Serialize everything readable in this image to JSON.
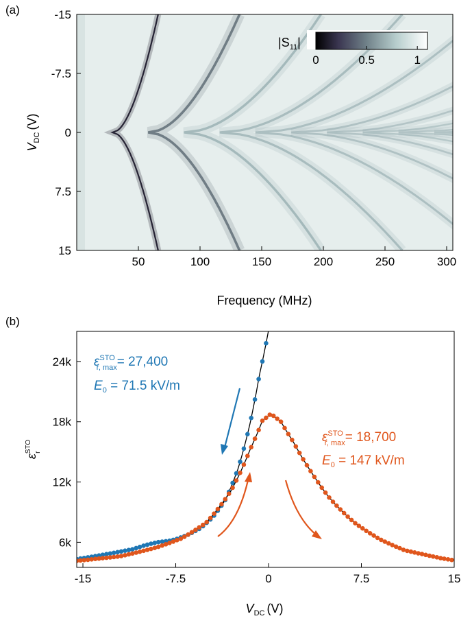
{
  "figure": {
    "panel_a_label": "(a)",
    "panel_b_label": "(b)"
  },
  "colors": {
    "blue": "#1f77b4",
    "orange": "#e0561c",
    "fit": "#000000"
  },
  "chart_data": [
    {
      "panel": "(a)",
      "type": "heatmap",
      "xlabel": "Frequency (MHz)",
      "ylabel_main": "V",
      "ylabel_sub": "DC",
      "ylabel_unit": "(V)",
      "x_ticks": [
        "50",
        "100",
        "150",
        "200",
        "250",
        "300"
      ],
      "x_tick_values": [
        50,
        100,
        150,
        200,
        250,
        300
      ],
      "y_ticks": [
        "-15",
        "-7.5",
        "0",
        "7.5",
        "15"
      ],
      "y_tick_values": [
        -15,
        -7.5,
        0,
        7.5,
        15
      ],
      "xlim": [
        0,
        305
      ],
      "ylim_top_to_bottom": [
        -15,
        15
      ],
      "colorbar": {
        "label_main": "|S",
        "label_sub": "11",
        "label_end": "|",
        "ticks": [
          "0",
          "0.5",
          "1"
        ],
        "tick_values": [
          0,
          0.5,
          1
        ],
        "range": [
          0,
          1.1
        ],
        "colormap": [
          "#000000",
          "#3a3550",
          "#6f8088",
          "#b7cecd",
          "#ffffff"
        ]
      },
      "resonances_at_zero_bias_mhz": [
        29,
        58,
        87,
        117,
        146,
        175,
        204,
        233,
        262,
        292
      ],
      "resonances_at_15V_mhz": [
        66,
        132,
        198,
        264
      ]
    },
    {
      "panel": "(b)",
      "type": "scatter",
      "xlabel_main": "V",
      "xlabel_sub": "DC",
      "xlabel_unit": "(V)",
      "ylabel_main": "ε",
      "ylabel_sup": "STO",
      "ylabel_sub": "r",
      "xlim": [
        -15.5,
        15
      ],
      "ylim": [
        3500,
        27000
      ],
      "x_ticks": [
        "-15",
        "-7.5",
        "0",
        "7.5",
        "15"
      ],
      "x_tick_values": [
        -15,
        -7.5,
        0,
        7.5,
        15
      ],
      "y_ticks": [
        "6k",
        "12k",
        "18k",
        "24k"
      ],
      "y_tick_values": [
        6000,
        12000,
        18000,
        24000
      ],
      "series": [
        {
          "color": "blue",
          "fit": {
            "eps_max": 27400,
            "E0_kV_per_m": 71.5,
            "center_V": 0
          },
          "x_range": [
            -15.5,
            0
          ],
          "points": [
            [
              -15.5,
              4320
            ],
            [
              -14.0,
              4620
            ],
            [
              -12.5,
              4950
            ],
            [
              -11.0,
              5300
            ],
            [
              -10.0,
              5700
            ],
            [
              -9.0,
              6000
            ],
            [
              -8.0,
              6150
            ],
            [
              -7.5,
              6300
            ],
            [
              -6.5,
              6750
            ],
            [
              -5.5,
              7400
            ],
            [
              -4.5,
              8500
            ],
            [
              -3.5,
              10200
            ],
            [
              -2.5,
              13200
            ],
            [
              -1.5,
              17800
            ],
            [
              -0.75,
              22600
            ],
            [
              0.0,
              27100
            ]
          ]
        },
        {
          "color": "orange",
          "fit": {
            "eps_max": 18700,
            "E0_kV_per_m": 147,
            "center_V": 0.2
          },
          "x_range": [
            -15.5,
            15
          ],
          "points": [
            [
              -15.5,
              4150
            ],
            [
              -12.0,
              4600
            ],
            [
              -9.0,
              5500
            ],
            [
              -7.0,
              6400
            ],
            [
              -5.0,
              8000
            ],
            [
              -3.0,
              11200
            ],
            [
              -1.5,
              15200
            ],
            [
              -0.5,
              18100
            ],
            [
              0.2,
              18800
            ],
            [
              1.0,
              18000
            ],
            [
              2.0,
              16000
            ],
            [
              3.5,
              12900
            ],
            [
              5.0,
              10300
            ],
            [
              7.0,
              7900
            ],
            [
              9.0,
              6300
            ],
            [
              11.0,
              5200
            ],
            [
              12.5,
              4800
            ],
            [
              14.0,
              4400
            ],
            [
              15.0,
              4200
            ]
          ]
        }
      ],
      "annotations": {
        "blue_eps_main": "ε",
        "blue_eps_sup": "STO",
        "blue_eps_sub": "r, max",
        "blue_eps_value": "= 27,400",
        "blue_E_main": "E",
        "blue_E_sub": "0",
        "blue_E_value": " = 71.5 kV/m",
        "orange_eps_main": "ε",
        "orange_eps_sup": "STO",
        "orange_eps_sub": "r, max",
        "orange_eps_value": "= 18,700",
        "orange_E_main": "E",
        "orange_E_sub": "0",
        "orange_E_value": " = 147 kV/m"
      }
    }
  ]
}
